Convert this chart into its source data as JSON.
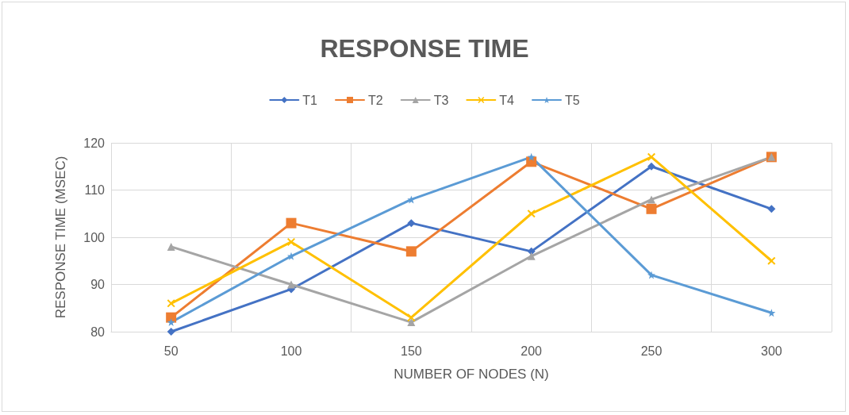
{
  "chart_data": {
    "type": "line",
    "title": "RESPONSE TIME",
    "xlabel": "NUMBER OF NODES (N)",
    "ylabel": "RESPONSE TIME (MSEC)",
    "categories": [
      "50",
      "100",
      "150",
      "200",
      "250",
      "300"
    ],
    "ylim": [
      80,
      120
    ],
    "yticks": [
      80,
      90,
      100,
      110,
      120
    ],
    "grid": true,
    "legend": "top",
    "line_style": "solid",
    "series": [
      {
        "name": "T1",
        "color": "#4472c4",
        "marker": "diamond",
        "values": [
          80,
          89,
          103,
          97,
          115,
          106
        ]
      },
      {
        "name": "T2",
        "color": "#ed7d31",
        "marker": "square",
        "values": [
          83,
          103,
          97,
          116,
          106,
          117
        ]
      },
      {
        "name": "T3",
        "color": "#a5a5a5",
        "marker": "triangle",
        "values": [
          98,
          90,
          82,
          96,
          108,
          117
        ]
      },
      {
        "name": "T4",
        "color": "#ffc000",
        "marker": "cross",
        "values": [
          86,
          99,
          83,
          105,
          117,
          95
        ]
      },
      {
        "name": "T5",
        "color": "#5b9bd5",
        "marker": "star",
        "values": [
          82,
          96,
          108,
          117,
          92,
          84
        ]
      }
    ]
  }
}
